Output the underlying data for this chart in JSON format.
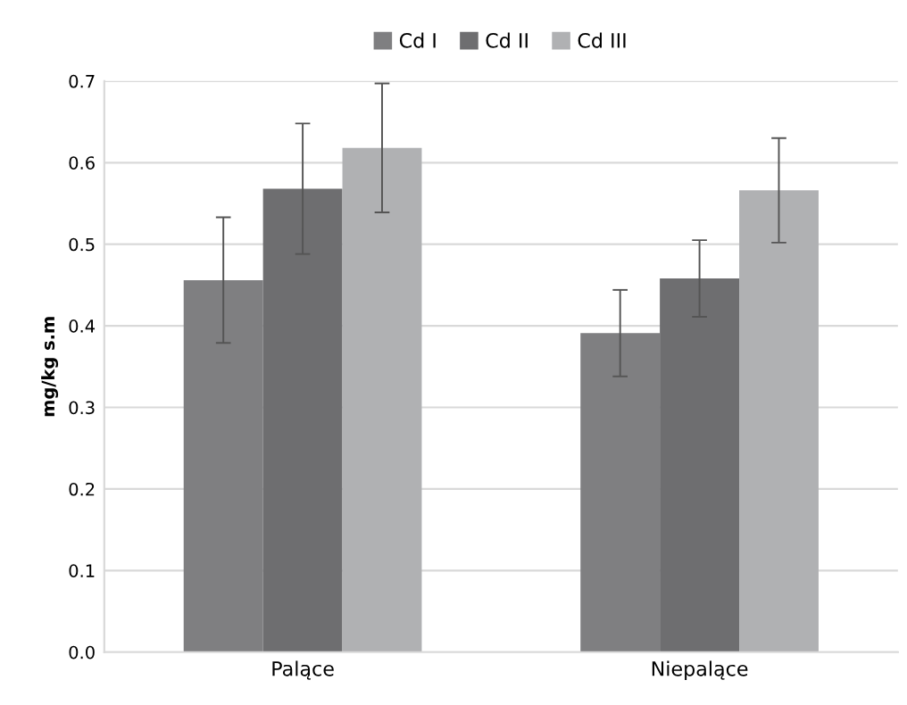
{
  "chart_data": {
    "type": "bar",
    "ylabel": "mg/kg s.m",
    "categories": [
      "Palące",
      "Niepalące"
    ],
    "series": [
      {
        "name": "Cd I",
        "color": "#7f7f81",
        "values": [
          0.456,
          0.391
        ],
        "errors": [
          0.077,
          0.053
        ]
      },
      {
        "name": "Cd II",
        "color": "#6e6e70",
        "values": [
          0.568,
          0.458
        ],
        "errors": [
          0.08,
          0.047
        ]
      },
      {
        "name": "Cd III",
        "color": "#b0b1b3",
        "values": [
          0.618,
          0.566
        ],
        "errors": [
          0.079,
          0.064
        ]
      }
    ],
    "ylim": [
      0,
      0.7
    ],
    "yticks": [
      {
        "value": 0,
        "label": "0.0"
      },
      0.1,
      0.2,
      0.3,
      0.4,
      0.5,
      0.6,
      0.7
    ],
    "grid": "y",
    "legend": "top"
  }
}
